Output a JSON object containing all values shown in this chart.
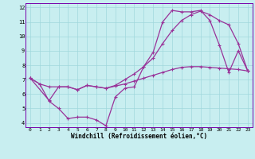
{
  "xlabel": "Windchill (Refroidissement éolien,°C)",
  "bg_color": "#c8eef0",
  "line_color": "#993399",
  "grid_color": "#a0d8dc",
  "xlim": [
    -0.5,
    23.5
  ],
  "ylim": [
    3.7,
    12.3
  ],
  "xticks": [
    0,
    1,
    2,
    3,
    4,
    5,
    6,
    7,
    8,
    9,
    10,
    11,
    12,
    13,
    14,
    15,
    16,
    17,
    18,
    19,
    20,
    21,
    22,
    23
  ],
  "yticks": [
    4,
    5,
    6,
    7,
    8,
    9,
    10,
    11,
    12
  ],
  "line1_x": [
    0,
    1,
    2,
    3,
    4,
    5,
    6,
    7,
    8,
    9,
    10,
    11,
    12,
    13,
    14,
    15,
    16,
    17,
    18,
    19,
    20,
    21,
    22,
    23
  ],
  "line1_y": [
    7.1,
    6.7,
    5.5,
    5.0,
    4.3,
    4.4,
    4.4,
    4.2,
    3.8,
    5.8,
    6.4,
    6.5,
    7.9,
    8.9,
    11.0,
    11.8,
    11.7,
    11.7,
    11.8,
    11.1,
    9.4,
    7.5,
    9.0,
    7.6
  ],
  "line2_x": [
    0,
    2,
    3,
    4,
    5,
    6,
    7,
    8,
    9,
    10,
    11,
    12,
    13,
    14,
    15,
    16,
    17,
    18,
    19,
    20,
    21,
    22,
    23
  ],
  "line2_y": [
    7.1,
    5.55,
    6.5,
    6.5,
    6.3,
    6.6,
    6.5,
    6.4,
    6.6,
    7.0,
    7.4,
    7.9,
    8.5,
    9.5,
    10.4,
    11.1,
    11.5,
    11.75,
    11.5,
    11.1,
    10.8,
    9.5,
    7.6
  ],
  "line3_x": [
    0,
    1,
    2,
    3,
    4,
    5,
    6,
    7,
    8,
    9,
    10,
    11,
    12,
    13,
    14,
    15,
    16,
    17,
    18,
    19,
    20,
    21,
    22,
    23
  ],
  "line3_y": [
    7.1,
    6.7,
    6.5,
    6.5,
    6.5,
    6.3,
    6.6,
    6.5,
    6.4,
    6.55,
    6.7,
    6.9,
    7.1,
    7.3,
    7.5,
    7.7,
    7.85,
    7.9,
    7.9,
    7.85,
    7.8,
    7.75,
    7.7,
    7.6
  ]
}
